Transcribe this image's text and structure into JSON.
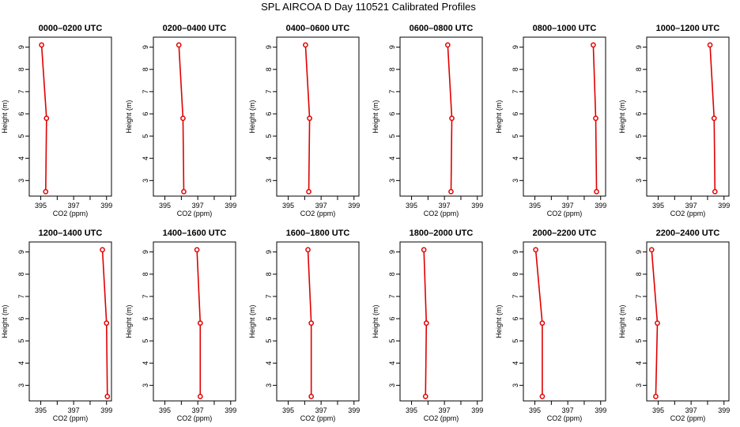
{
  "title": "SPL AIRCOA D  Day 110521  Calibrated Profiles",
  "colors": {
    "profile": "#e00000",
    "axis": "#000000"
  },
  "chart_data": {
    "type": "line",
    "title": "SPL AIRCOA D  Day 110521  Calibrated Profiles",
    "xlabel": "CO2 (ppm)",
    "ylabel": "Height (m)",
    "xlim": [
      394.3,
      399.3
    ],
    "ylim": [
      2.3,
      9.45
    ],
    "x_ticks": [
      395,
      396,
      397,
      398,
      399
    ],
    "x_tick_labels": [
      "395",
      "",
      "397",
      "",
      "399"
    ],
    "y_ticks": [
      3,
      4,
      5,
      6,
      7,
      8,
      9
    ],
    "y_tick_labels": [
      "3",
      "4",
      "5",
      "6",
      "7",
      "8",
      "9"
    ],
    "heights": [
      9.1,
      5.8,
      2.5
    ],
    "panels": [
      {
        "title": "0000–0200 UTC",
        "co2": [
          395.05,
          395.35,
          395.3
        ]
      },
      {
        "title": "0200–0400 UTC",
        "co2": [
          395.85,
          396.1,
          396.15
        ]
      },
      {
        "title": "0400–0600 UTC",
        "co2": [
          396.05,
          396.3,
          396.25
        ]
      },
      {
        "title": "0600–0800 UTC",
        "co2": [
          397.2,
          397.45,
          397.4
        ]
      },
      {
        "title": "0800–1000 UTC",
        "co2": [
          398.55,
          398.7,
          398.75
        ]
      },
      {
        "title": "1000–1200 UTC",
        "co2": [
          398.15,
          398.4,
          398.45
        ]
      },
      {
        "title": "1200–1400 UTC",
        "co2": [
          398.75,
          399.0,
          399.05
        ]
      },
      {
        "title": "1400–1600 UTC",
        "co2": [
          396.95,
          397.15,
          397.15
        ]
      },
      {
        "title": "1600–1800 UTC",
        "co2": [
          396.2,
          396.4,
          396.4
        ]
      },
      {
        "title": "1800–2000 UTC",
        "co2": [
          395.75,
          395.9,
          395.85
        ]
      },
      {
        "title": "2000–2200 UTC",
        "co2": [
          395.05,
          395.45,
          395.45
        ]
      },
      {
        "title": "2200–2400 UTC",
        "co2": [
          394.6,
          394.95,
          394.85
        ]
      }
    ]
  }
}
